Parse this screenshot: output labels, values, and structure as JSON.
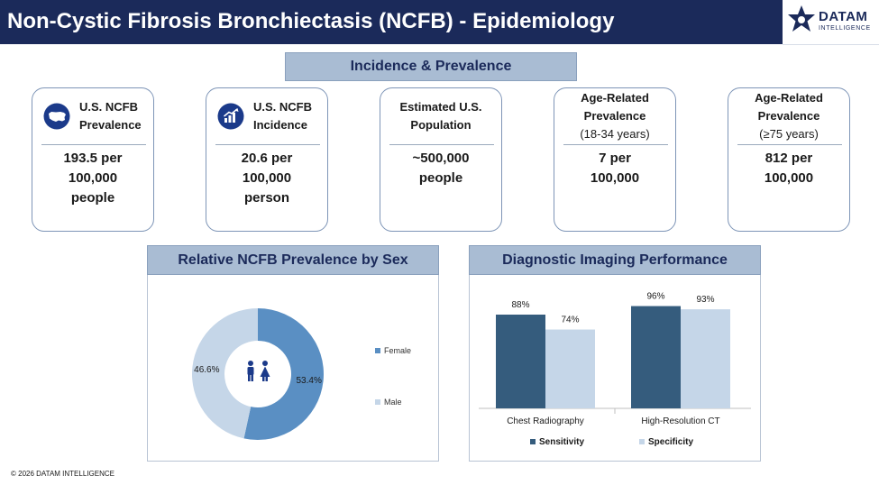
{
  "header": {
    "title": "Non-Cystic Fibrosis Bronchiectasis (NCFB) - Epidemiology"
  },
  "logo": {
    "name": "DATAM",
    "sub": "INTELLIGENCE"
  },
  "section_title": "Incidence & Prevalence",
  "cards": [
    {
      "label_lines": [
        "U.S. NCFB",
        "Prevalence"
      ],
      "paren": "",
      "value": "193.5 per\n100,000\npeople",
      "icon": "us-map-icon"
    },
    {
      "label_lines": [
        "U.S. NCFB",
        "Incidence"
      ],
      "paren": "",
      "value": "20.6 per\n100,000\nperson",
      "icon": "growth-chart-icon"
    },
    {
      "label_lines": [
        "Estimated U.S.",
        "Population"
      ],
      "paren": "",
      "value": "~500,000\npeople",
      "icon": ""
    },
    {
      "label_lines": [
        "Age-Related",
        "Prevalence"
      ],
      "paren": "(18-34 years)",
      "value": "7 per\n100,000",
      "icon": ""
    },
    {
      "label_lines": [
        "Age-Related",
        "Prevalence"
      ],
      "paren": "(≥75 years)",
      "value": "812 per\n100,000",
      "icon": ""
    }
  ],
  "colors": {
    "navy": "#1b2a5a",
    "female": "#5a8fc3",
    "male": "#c5d6e8",
    "sensitivity": "#355c7d",
    "specificity": "#c5d6e8"
  },
  "chart_data": [
    {
      "type": "pie",
      "title": "Relative NCFB Prevalence by Sex",
      "donut": true,
      "center_icon": "people-icon",
      "categories": [
        "Female",
        "Male"
      ],
      "values": [
        53.4,
        46.6
      ],
      "value_labels": [
        "53.4%",
        "46.6%"
      ],
      "legend": [
        "Female",
        "Male"
      ],
      "legend_placement": "right"
    },
    {
      "type": "bar",
      "title": "Diagnostic Imaging Performance",
      "categories": [
        "Chest Radiography",
        "High-Resolution CT"
      ],
      "series": [
        {
          "name": "Sensitivity",
          "values": [
            88,
            96
          ],
          "labels": [
            "88%",
            "96%"
          ]
        },
        {
          "name": "Specificity",
          "values": [
            74,
            93
          ],
          "labels": [
            "74%",
            "93%"
          ]
        }
      ],
      "ylim": [
        0,
        110
      ],
      "grid": false,
      "legend_placement": "bottom"
    }
  ],
  "footer": {
    "copyright": "© 2026 DATAM INTELLIGENCE"
  }
}
